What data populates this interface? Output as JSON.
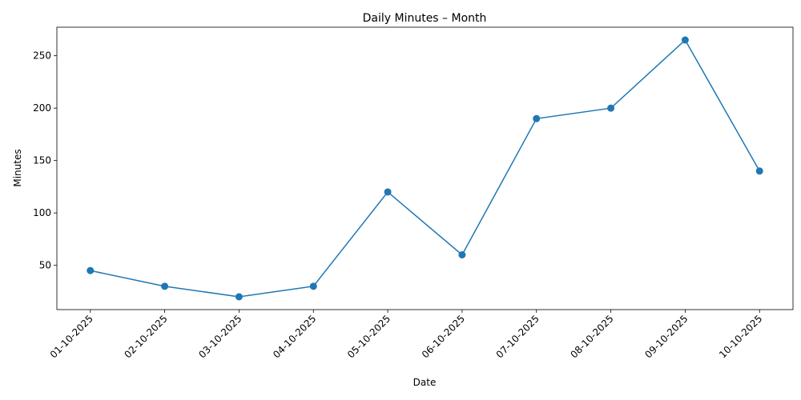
{
  "chart_data": {
    "type": "line",
    "title": "Daily Minutes – Month",
    "x_label": "Date",
    "y_label": "Minutes",
    "categories": [
      "01-10-2025",
      "02-10-2025",
      "03-10-2025",
      "04-10-2025",
      "05-10-2025",
      "06-10-2025",
      "07-10-2025",
      "08-10-2025",
      "09-10-2025",
      "10-10-2025"
    ],
    "values": [
      45,
      30,
      20,
      30,
      120,
      60,
      190,
      200,
      265,
      140
    ],
    "color": "#1f77b4",
    "markers": true,
    "grid": false,
    "ylim": [
      7.75,
      277.25
    ],
    "yticks": [
      50,
      100,
      150,
      200,
      250
    ]
  }
}
